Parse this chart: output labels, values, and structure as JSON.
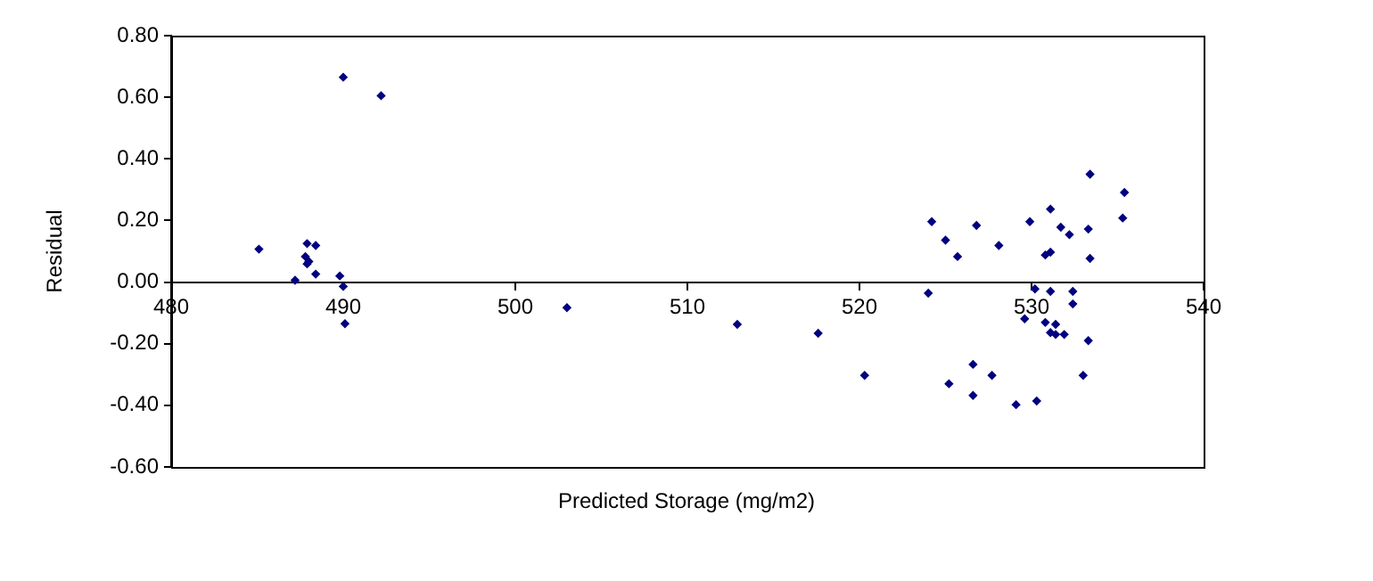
{
  "chart_data": {
    "type": "scatter",
    "xlabel": "Predicted Storage (mg/m2)",
    "ylabel": "Residual",
    "series": [
      {
        "color": "#000080",
        "x": [
          490.0,
          492.2,
          485.1,
          487.9,
          488.4,
          487.8,
          488.0,
          487.9,
          488.4,
          487.2,
          489.8,
          490.0,
          490.1,
          503.0,
          512.9,
          517.6,
          520.3,
          533.4,
          535.4,
          535.3,
          524.2,
          526.8,
          529.9,
          531.1,
          531.7,
          532.2,
          533.3,
          525.0,
          528.1,
          525.7,
          530.8,
          531.1,
          533.4,
          524.0,
          530.2,
          531.1,
          532.4,
          532.4,
          529.6,
          530.8,
          531.4,
          531.1,
          531.4,
          531.9,
          533.3,
          526.6,
          525.2,
          527.7,
          533.0,
          526.6,
          529.1,
          530.3
        ],
        "values": [
          0.665,
          0.605,
          0.107,
          0.125,
          0.119,
          0.083,
          0.067,
          0.059,
          0.026,
          0.006,
          0.02,
          -0.014,
          -0.135,
          -0.083,
          -0.137,
          -0.166,
          -0.303,
          0.35,
          0.291,
          0.208,
          0.196,
          0.184,
          0.196,
          0.237,
          0.178,
          0.154,
          0.172,
          0.136,
          0.119,
          0.083,
          0.088,
          0.097,
          0.077,
          -0.036,
          -0.022,
          -0.03,
          -0.03,
          -0.071,
          -0.119,
          -0.131,
          -0.137,
          -0.164,
          -0.17,
          -0.17,
          -0.19,
          -0.267,
          -0.33,
          -0.303,
          -0.303,
          -0.368,
          -0.398,
          -0.386
        ]
      }
    ],
    "xlim": [
      480,
      540
    ],
    "xticks": [
      480,
      490,
      500,
      510,
      520,
      530,
      540
    ],
    "ylim": [
      -0.6,
      0.8
    ],
    "yticks": [
      {
        "value": -0.6,
        "label": "-0.60"
      },
      {
        "value": -0.4,
        "label": "-0.40"
      },
      {
        "value": -0.2,
        "label": "-0.20"
      },
      {
        "value": 0,
        "label": "0.00"
      },
      {
        "value": 0.2,
        "label": "0.20"
      },
      {
        "value": 0.4,
        "label": "0.40"
      },
      {
        "value": 0.6,
        "label": "0.60"
      },
      {
        "value": 0.8,
        "label": "0.80"
      }
    ],
    "grid": false,
    "legend": false,
    "marker": "diamond"
  }
}
